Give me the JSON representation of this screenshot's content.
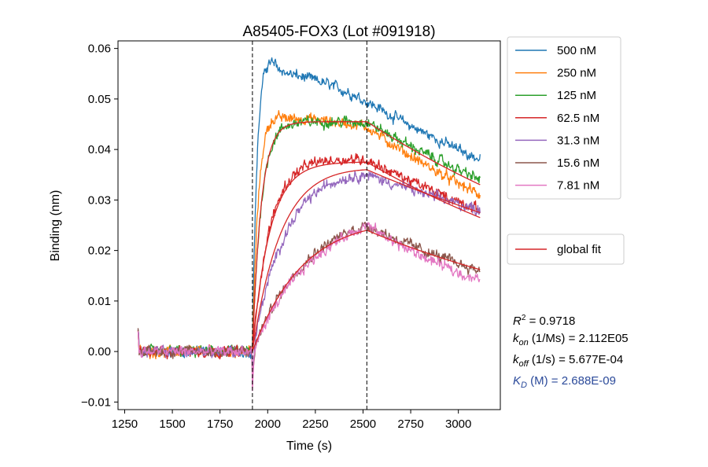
{
  "chart_data": {
    "type": "line",
    "title": "A85405-FOX3 (Lot #091918)",
    "xlabel": "Time (s)",
    "ylabel": "Binding (nm)",
    "xlim": [
      1215,
      3220
    ],
    "ylim": [
      -0.0115,
      0.0615
    ],
    "xticks": [
      1250,
      1500,
      1750,
      2000,
      2250,
      2500,
      2750,
      3000
    ],
    "xtick_labels": [
      "1250",
      "1500",
      "1750",
      "2000",
      "2250",
      "2500",
      "2750",
      "3000"
    ],
    "yticks": [
      -0.01,
      0.0,
      0.01,
      0.02,
      0.03,
      0.04,
      0.05,
      0.06
    ],
    "ytick_labels": [
      "−0.01",
      "0.00",
      "0.01",
      "0.02",
      "0.03",
      "0.04",
      "0.05",
      "0.06"
    ],
    "vlines": [
      1920,
      2520
    ],
    "association_start": 1920,
    "dissociation_start": 2520,
    "time_start": 1320,
    "time_end": 3115,
    "legend_location": "right, outside plot",
    "series": [
      {
        "name": "500 nM",
        "color": "#1f77b4",
        "amplitude": 0.0555,
        "peak_at_dissociation": 0.0495,
        "end": 0.038,
        "rate": 0.04,
        "overshoot": 0.004
      },
      {
        "name": "250 nM",
        "color": "#ff7f0e",
        "amplitude": 0.0465,
        "peak_at_dissociation": 0.0445,
        "end": 0.031,
        "rate": 0.03,
        "overshoot": 0.002
      },
      {
        "name": "125 nM",
        "color": "#2ca02c",
        "amplitude": 0.0455,
        "peak_at_dissociation": 0.0455,
        "end": 0.034,
        "rate": 0.022,
        "overshoot": 0.0
      },
      {
        "name": "62.5 nM",
        "color": "#d62728",
        "amplitude": 0.0385,
        "peak_at_dissociation": 0.038,
        "end": 0.028,
        "rate": 0.011,
        "overshoot": 0.0
      },
      {
        "name": "31.3 nM",
        "color": "#9467bd",
        "amplitude": 0.038,
        "peak_at_dissociation": 0.035,
        "end": 0.028,
        "rate": 0.0055,
        "overshoot": 0.0
      },
      {
        "name": "15.6 nM",
        "color": "#8c564b",
        "amplitude": 0.0285,
        "peak_at_dissociation": 0.025,
        "end": 0.016,
        "rate": 0.0035,
        "overshoot": 0.0
      },
      {
        "name": "7.81 nM",
        "color": "#e377c2",
        "amplitude": 0.0275,
        "peak_at_dissociation": 0.025,
        "end": 0.014,
        "rate": 0.0033,
        "overshoot": 0.0
      }
    ],
    "fit": {
      "name": "global fit",
      "color": "#d62728",
      "curves": [
        {
          "plateau": 0.0455,
          "at_dissociation": 0.0455,
          "end": 0.033
        },
        {
          "plateau": 0.0375,
          "at_dissociation": 0.0375,
          "end": 0.0265
        },
        {
          "plateau": 0.0385,
          "at_dissociation": 0.036,
          "end": 0.0275
        },
        {
          "plateau": 0.029,
          "at_dissociation": 0.024,
          "end": 0.0162
        }
      ]
    },
    "annotations": {
      "r2_value": "0.9718",
      "kon_unit": "(1/Ms)",
      "kon_value": "2.112E05",
      "koff_unit": "(1/s)",
      "koff_value": "5.677E-04",
      "kd_unit": "(M)",
      "kd_value": "2.688E-09"
    }
  }
}
